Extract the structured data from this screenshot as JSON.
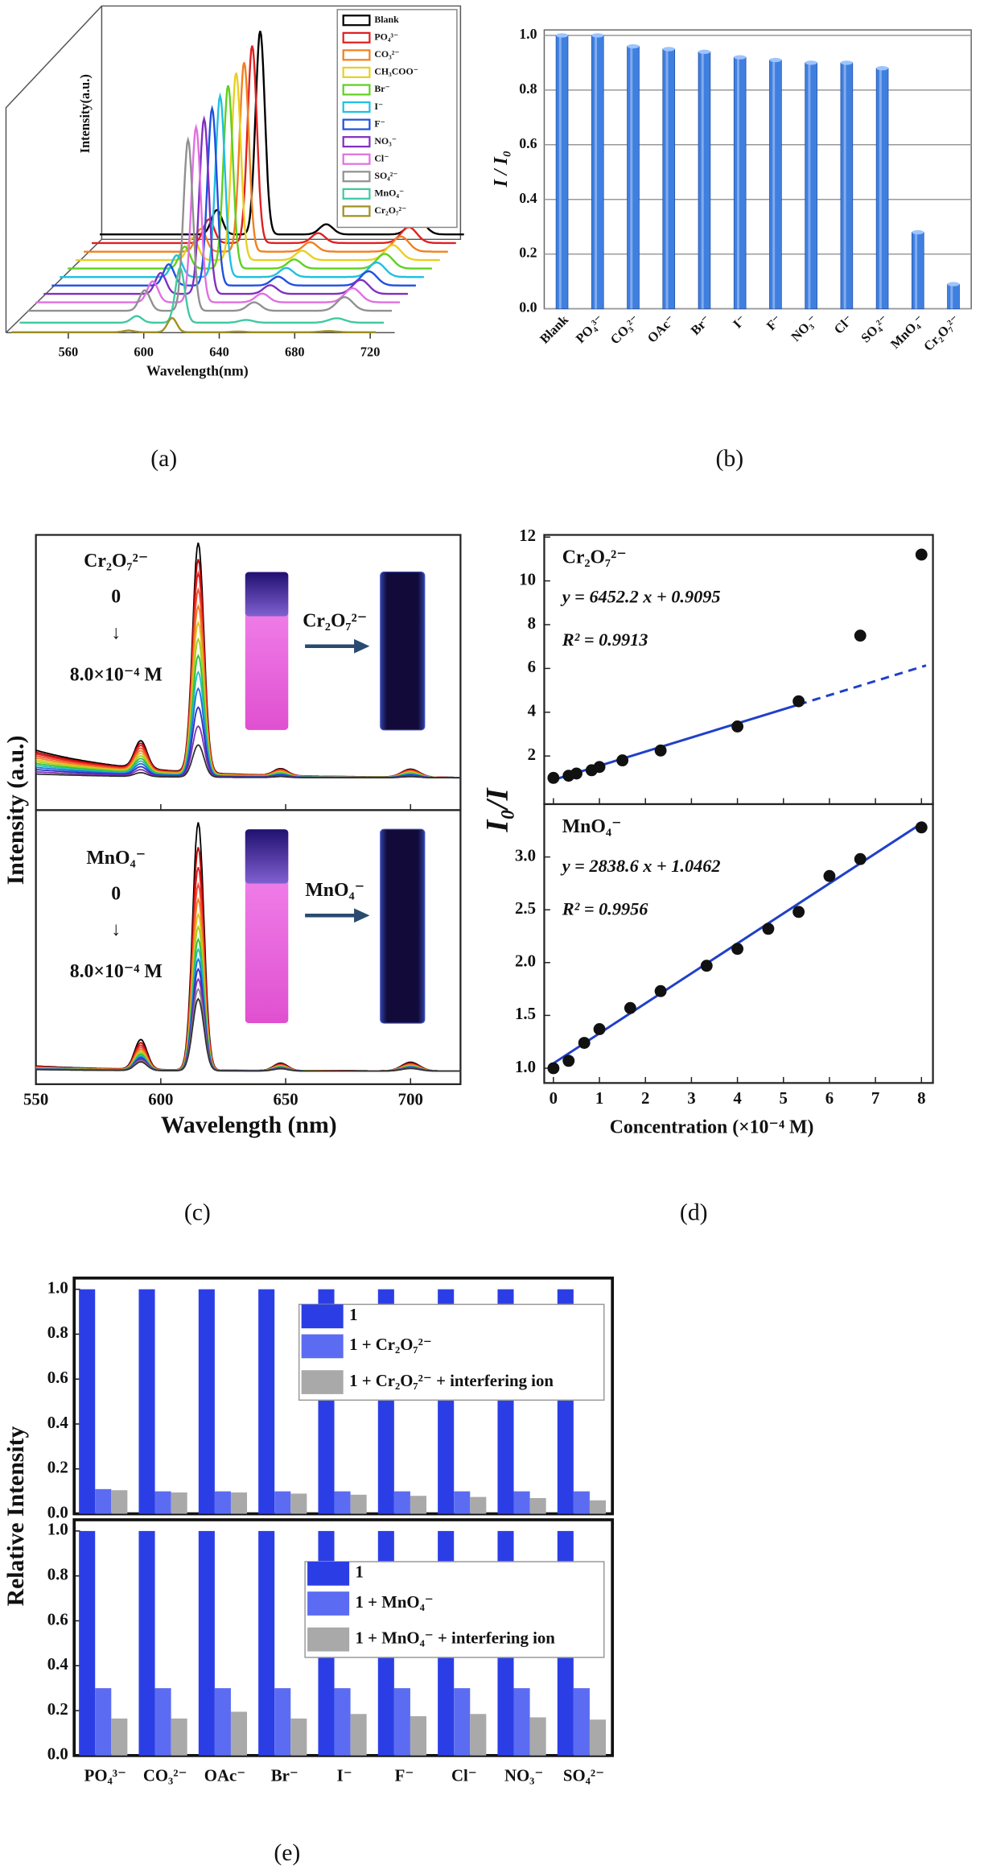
{
  "chart_data": [
    {
      "type": "waterfall",
      "panel_label": "(a)",
      "xlabel": "Wavelength(nm)",
      "ylabel": "Intensity(a.u.)",
      "xlim": [
        527,
        733
      ],
      "xticks": [
        560,
        600,
        640,
        680,
        720
      ],
      "series": [
        {
          "name": "Blank",
          "color": "#000000",
          "peak": 1.0
        },
        {
          "name": "PO₄³⁻",
          "color": "#e02020",
          "peak": 0.97
        },
        {
          "name": "CO₃²⁻",
          "color": "#f08020",
          "peak": 0.93
        },
        {
          "name": "CH₃COO⁻",
          "color": "#e8d020",
          "peak": 0.92
        },
        {
          "name": "Br⁻",
          "color": "#60d020",
          "peak": 0.9
        },
        {
          "name": "I⁻",
          "color": "#20c0e0",
          "peak": 0.89
        },
        {
          "name": "F⁻",
          "color": "#2050e0",
          "peak": 0.87
        },
        {
          "name": "NO₃⁻",
          "color": "#8030c0",
          "peak": 0.86
        },
        {
          "name": "Cl⁻",
          "color": "#e070e0",
          "peak": 0.86
        },
        {
          "name": "SO₄²⁻",
          "color": "#909090",
          "peak": 0.84
        },
        {
          "name": "MnO₄⁻",
          "color": "#40c8a0",
          "peak": 0.27
        },
        {
          "name": "Cr₂O₇²⁻",
          "color": "#a09020",
          "peak": 0.07
        }
      ]
    },
    {
      "type": "bar",
      "panel_label": "(b)",
      "ylabel": "I / I₀",
      "color": "#3f7fe0",
      "grid": true,
      "categories": [
        "Blank",
        "PO₄³⁻",
        "CO₃²⁻",
        "OAc⁻",
        "Br⁻",
        "I⁻",
        "F⁻",
        "NO₃⁻",
        "Cl⁻",
        "SO₄²⁻",
        "MnO₄⁻",
        "Cr₂O₇²⁻"
      ],
      "values": [
        1.0,
        1.0,
        0.96,
        0.95,
        0.94,
        0.92,
        0.91,
        0.9,
        0.9,
        0.88,
        0.28,
        0.09
      ],
      "ylim": [
        0,
        1.02
      ],
      "yticks": [
        {
          "value": 0,
          "label": "0.0"
        },
        {
          "value": 0.2,
          "label": "0.2"
        },
        {
          "value": 0.4,
          "label": "0.4"
        },
        {
          "value": 0.6,
          "label": "0.6"
        },
        {
          "value": 0.8,
          "label": "0.8"
        },
        {
          "value": 1.0,
          "label": "1.0"
        }
      ]
    },
    {
      "type": "spectra",
      "panel_label": "(c)",
      "xlabel": "Wavelength (nm)",
      "ylabel": "Intensity (a.u.)",
      "xlim": [
        550,
        720
      ],
      "xticks": [
        550,
        600,
        650,
        700
      ],
      "panels": [
        {
          "annotations": [
            "Cr₂O₇²⁻",
            "0",
            "↓",
            "8.0×10⁻⁴ M"
          ],
          "arrow_label": "Cr₂O₇²⁻",
          "peaks": [
            1.0,
            0.93,
            0.87,
            0.8,
            0.73,
            0.66,
            0.59,
            0.52,
            0.45,
            0.38,
            0.3,
            0.22,
            0.14
          ],
          "colors": [
            "#000000",
            "#c00000",
            "#e02020",
            "#f05030",
            "#f08020",
            "#e0c020",
            "#a0d020",
            "#30c040",
            "#20c0c0",
            "#2070e0",
            "#3030c0",
            "#8030b0",
            "#303030"
          ]
        },
        {
          "annotations": [
            "MnO₄⁻",
            "0",
            "↓",
            "8.0×10⁻⁴ M"
          ],
          "arrow_label": "MnO₄⁻",
          "peaks": [
            1.0,
            0.9,
            0.82,
            0.75,
            0.69,
            0.63,
            0.58,
            0.53,
            0.49,
            0.45,
            0.41,
            0.37,
            0.33,
            0.29
          ],
          "colors": [
            "#000000",
            "#c00000",
            "#e02020",
            "#f05030",
            "#f08020",
            "#e0c020",
            "#a0d020",
            "#30c040",
            "#20c0c0",
            "#2070e0",
            "#3030c0",
            "#8030b0",
            "#808080",
            "#303030"
          ]
        }
      ]
    },
    {
      "type": "scatter",
      "panel_label": "(d)",
      "xlabel": "Concentration (×10⁻⁴ M)",
      "ylabel": "I₀/I",
      "xlim": [
        -0.2,
        8.25
      ],
      "xticks": [
        0,
        1,
        2,
        3,
        4,
        5,
        6,
        7,
        8
      ],
      "panels": [
        {
          "ion": "Cr₂O₇²⁻",
          "equation": "y = 6452.2 x + 0.9095",
          "r2": "R² = 0.9913",
          "x": [
            0,
            0.33,
            0.5,
            0.83,
            1.0,
            1.5,
            2.33,
            4.0,
            5.33,
            6.67,
            8.0
          ],
          "y": [
            1.0,
            1.1,
            1.2,
            1.35,
            1.5,
            1.8,
            2.25,
            3.35,
            4.5,
            7.5,
            11.2
          ],
          "ylim": [
            -0.2,
            12.1
          ],
          "yticks": [
            2,
            4,
            6,
            8,
            10,
            12
          ],
          "fit": {
            "slope": 6452.2,
            "intercept": 0.9095,
            "x_unit": 0.0001,
            "range": [
              0,
              5.33
            ],
            "extrapolation": [
              5.33,
              8.1
            ]
          }
        },
        {
          "ion": "MnO₄⁻",
          "equation": "y = 2838.6 x + 1.0462",
          "r2": "R² = 0.9956",
          "x": [
            0,
            0.33,
            0.67,
            1.0,
            1.67,
            2.33,
            3.33,
            4.0,
            4.67,
            5.33,
            6.0,
            6.67,
            8.0
          ],
          "y": [
            1.0,
            1.07,
            1.24,
            1.37,
            1.57,
            1.73,
            1.97,
            2.13,
            2.32,
            2.48,
            2.82,
            2.98,
            3.28
          ],
          "ylim": [
            0.86,
            3.5
          ],
          "yticks": [
            {
              "value": 1.0,
              "label": "1.0"
            },
            {
              "value": 1.5,
              "label": "1.5"
            },
            {
              "value": 2.0,
              "label": "2.0"
            },
            {
              "value": 2.5,
              "label": "2.5"
            },
            {
              "value": 3.0,
              "label": "3.0"
            }
          ],
          "fit": {
            "slope": 2838.6,
            "intercept": 1.0462,
            "x_unit": 0.0001,
            "range": [
              0,
              8
            ]
          }
        }
      ]
    },
    {
      "type": "grouped-bar",
      "panel_label": "(e)",
      "ylabel": "Relative Intensity",
      "categories": [
        "PO₄³⁻",
        "CO₃²⁻",
        "OAc⁻",
        "Br⁻",
        "I⁻",
        "F⁻",
        "Cl⁻",
        "NO₃⁻",
        "SO₄²⁻"
      ],
      "ylim": [
        0,
        1.05
      ],
      "yticks": [
        {
          "value": 0,
          "label": "0.0"
        },
        {
          "value": 0.2,
          "label": "0.2"
        },
        {
          "value": 0.4,
          "label": "0.4"
        },
        {
          "value": 0.6,
          "label": "0.6"
        },
        {
          "value": 0.8,
          "label": "0.8"
        },
        {
          "value": 1.0,
          "label": "1.0"
        }
      ],
      "panels": [
        {
          "series": [
            {
              "name": "1",
              "color": "#2b3ee6",
              "values": [
                1.0,
                1.0,
                1.0,
                1.0,
                1.0,
                1.0,
                1.0,
                1.0,
                1.0
              ]
            },
            {
              "name": "1 + Cr₂O₇²⁻",
              "color": "#5b6cf2",
              "values": [
                0.11,
                0.1,
                0.1,
                0.1,
                0.1,
                0.1,
                0.1,
                0.1,
                0.1
              ]
            },
            {
              "name": "1 + Cr₂O₇²⁻ + interfering ion",
              "color": "#a9a9a9",
              "values": [
                0.105,
                0.095,
                0.095,
                0.09,
                0.085,
                0.08,
                0.075,
                0.07,
                0.06
              ]
            }
          ]
        },
        {
          "series": [
            {
              "name": "1",
              "color": "#2b3ee6",
              "values": [
                1.0,
                1.0,
                1.0,
                1.0,
                1.0,
                1.0,
                1.0,
                1.0,
                1.0
              ]
            },
            {
              "name": "1 + MnO₄⁻",
              "color": "#5b6cf2",
              "values": [
                0.3,
                0.3,
                0.3,
                0.3,
                0.3,
                0.3,
                0.3,
                0.3,
                0.3
              ]
            },
            {
              "name": "1 + MnO₄⁻ + interfering ion",
              "color": "#a9a9a9",
              "values": [
                0.165,
                0.165,
                0.195,
                0.165,
                0.185,
                0.175,
                0.185,
                0.17,
                0.16
              ]
            }
          ]
        }
      ]
    }
  ]
}
